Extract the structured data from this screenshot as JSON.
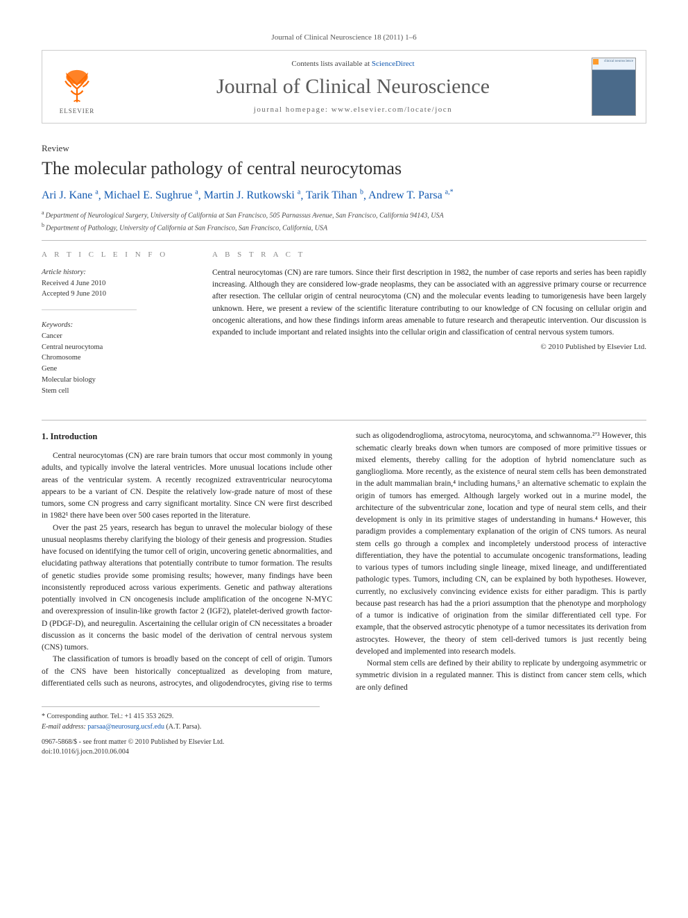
{
  "headerLine": "Journal of Clinical Neuroscience 18 (2011) 1–6",
  "masthead": {
    "contentsLine_pre": "Contents lists available at ",
    "contentsLine_link": "ScienceDirect",
    "journalName": "Journal of Clinical Neuroscience",
    "homepageLabel": "journal homepage: www.elsevier.com/locate/jocn",
    "publisherName": "ELSEVIER",
    "coverTitle": "clinical neuroscience"
  },
  "article": {
    "type": "Review",
    "title": "The molecular pathology of central neurocytomas",
    "authorsHtml": [
      {
        "name": "Ari J. Kane",
        "sup": "a"
      },
      {
        "name": "Michael E. Sughrue",
        "sup": "a"
      },
      {
        "name": "Martin J. Rutkowski",
        "sup": "a"
      },
      {
        "name": "Tarik Tihan",
        "sup": "b"
      },
      {
        "name": "Andrew T. Parsa",
        "sup": "a,*"
      }
    ],
    "affiliations": [
      {
        "sup": "a",
        "text": "Department of Neurological Surgery, University of California at San Francisco, 505 Parnassus Avenue, San Francisco, California 94143, USA"
      },
      {
        "sup": "b",
        "text": "Department of Pathology, University of California at San Francisco, San Francisco, California, USA"
      }
    ]
  },
  "info": {
    "sectionLabel": "A R T I C L E   I N F O",
    "historyLabel": "Article history:",
    "received": "Received 4 June 2010",
    "accepted": "Accepted 9 June 2010",
    "keywordsLabel": "Keywords:",
    "keywords": [
      "Cancer",
      "Central neurocytoma",
      "Chromosome",
      "Gene",
      "Molecular biology",
      "Stem cell"
    ]
  },
  "abstract": {
    "sectionLabel": "A B S T R A C T",
    "text": "Central neurocytomas (CN) are rare tumors. Since their first description in 1982, the number of case reports and series has been rapidly increasing. Although they are considered low-grade neoplasms, they can be associated with an aggressive primary course or recurrence after resection. The cellular origin of central neurocytoma (CN) and the molecular events leading to tumorigenesis have been largely unknown. Here, we present a review of the scientific literature contributing to our knowledge of CN focusing on cellular origin and oncogenic alterations, and how these findings inform areas amenable to future research and therapeutic intervention. Our discussion is expanded to include important and related insights into the cellular origin and classification of central nervous system tumors.",
    "copyright": "© 2010 Published by Elsevier Ltd."
  },
  "body": {
    "heading1": "1. Introduction",
    "p1": "Central neurocytomas (CN) are rare brain tumors that occur most commonly in young adults, and typically involve the lateral ventricles. More unusual locations include other areas of the ventricular system. A recently recognized extraventricular neurocytoma appears to be a variant of CN. Despite the relatively low-grade nature of most of these tumors, some CN progress and carry significant mortality. Since CN were first described in 1982¹ there have been over 500 cases reported in the literature.",
    "p2": "Over the past 25 years, research has begun to unravel the molecular biology of these unusual neoplasms thereby clarifying the biology of their genesis and progression. Studies have focused on identifying the tumor cell of origin, uncovering genetic abnormalities, and elucidating pathway alterations that potentially contribute to tumor formation. The results of genetic studies provide some promising results; however, many findings have been inconsistently reproduced across various experiments. Genetic and pathway alterations potentially involved in CN oncogenesis include amplification of the oncogene N-MYC and overexpression of insulin-like growth factor 2 (IGF2), platelet-derived growth factor-D (PDGF-D), and neuregulin. Ascertaining the cellular origin of CN necessitates a broader discussion as it concerns the basic model of the derivation of central nervous system (CNS) tumors.",
    "p3": "The classification of tumors is broadly based on the concept of cell of origin. Tumors of the CNS have been historically conceptualized as developing from mature, differentiated cells such as neurons, astrocytes, and oligodendrocytes, giving rise to terms such as oligodendroglioma, astrocytoma, neurocytoma, and schwannoma.²ʼ³ However, this schematic clearly breaks down when tumors are composed of more primitive tissues or mixed elements, thereby calling for the adoption of hybrid nomenclature such as ganglioglioma. More recently, as the existence of neural stem cells has been demonstrated in the adult mammalian brain,⁴ including humans,⁵ an alternative schematic to explain the origin of tumors has emerged. Although largely worked out in a murine model, the architecture of the subventricular zone, location and type of neural stem cells, and their development is only in its primitive stages of understanding in humans.⁴ However, this paradigm provides a complementary explanation of the origin of CNS tumors. As neural stem cells go through a complex and incompletely understood process of interactive differentiation, they have the potential to accumulate oncogenic transformations, leading to various types of tumors including single lineage, mixed lineage, and undifferentiated pathologic types. Tumors, including CN, can be explained by both hypotheses. However, currently, no exclusively convincing evidence exists for either paradigm. This is partly because past research has had the a priori assumption that the phenotype and morphology of a tumor is indicative of origination from the similar differentiated cell type. For example, that the observed astrocytic phenotype of a tumor necessitates its derivation from astrocytes. However, the theory of stem cell-derived tumors is just recently being developed and implemented into research models.",
    "p4": "Normal stem cells are defined by their ability to replicate by undergoing asymmetric or symmetric division in a regulated manner. This is distinct from cancer stem cells, which are only defined"
  },
  "footnotes": {
    "corr": "* Corresponding author. Tel.: +1 415 353 2629.",
    "emailLabel": "E-mail address:",
    "email": "parsaa@neurosurg.ucsf.edu",
    "emailPerson": "(A.T. Parsa).",
    "doiLine1": "0967-5868/$ - see front matter © 2010 Published by Elsevier Ltd.",
    "doiLine2": "doi:10.1016/j.jocn.2010.06.004"
  },
  "colors": {
    "link": "#1058b0",
    "elsevierOrange": "#ff6c00",
    "textGrey": "#5a5a5a",
    "ruleGrey": "#bbbbbb"
  },
  "typography": {
    "bodyFontSizePx": 11.5,
    "titleFontSizePx": 26,
    "journalNameFontSizePx": 30,
    "headerFontSizePx": 11
  }
}
